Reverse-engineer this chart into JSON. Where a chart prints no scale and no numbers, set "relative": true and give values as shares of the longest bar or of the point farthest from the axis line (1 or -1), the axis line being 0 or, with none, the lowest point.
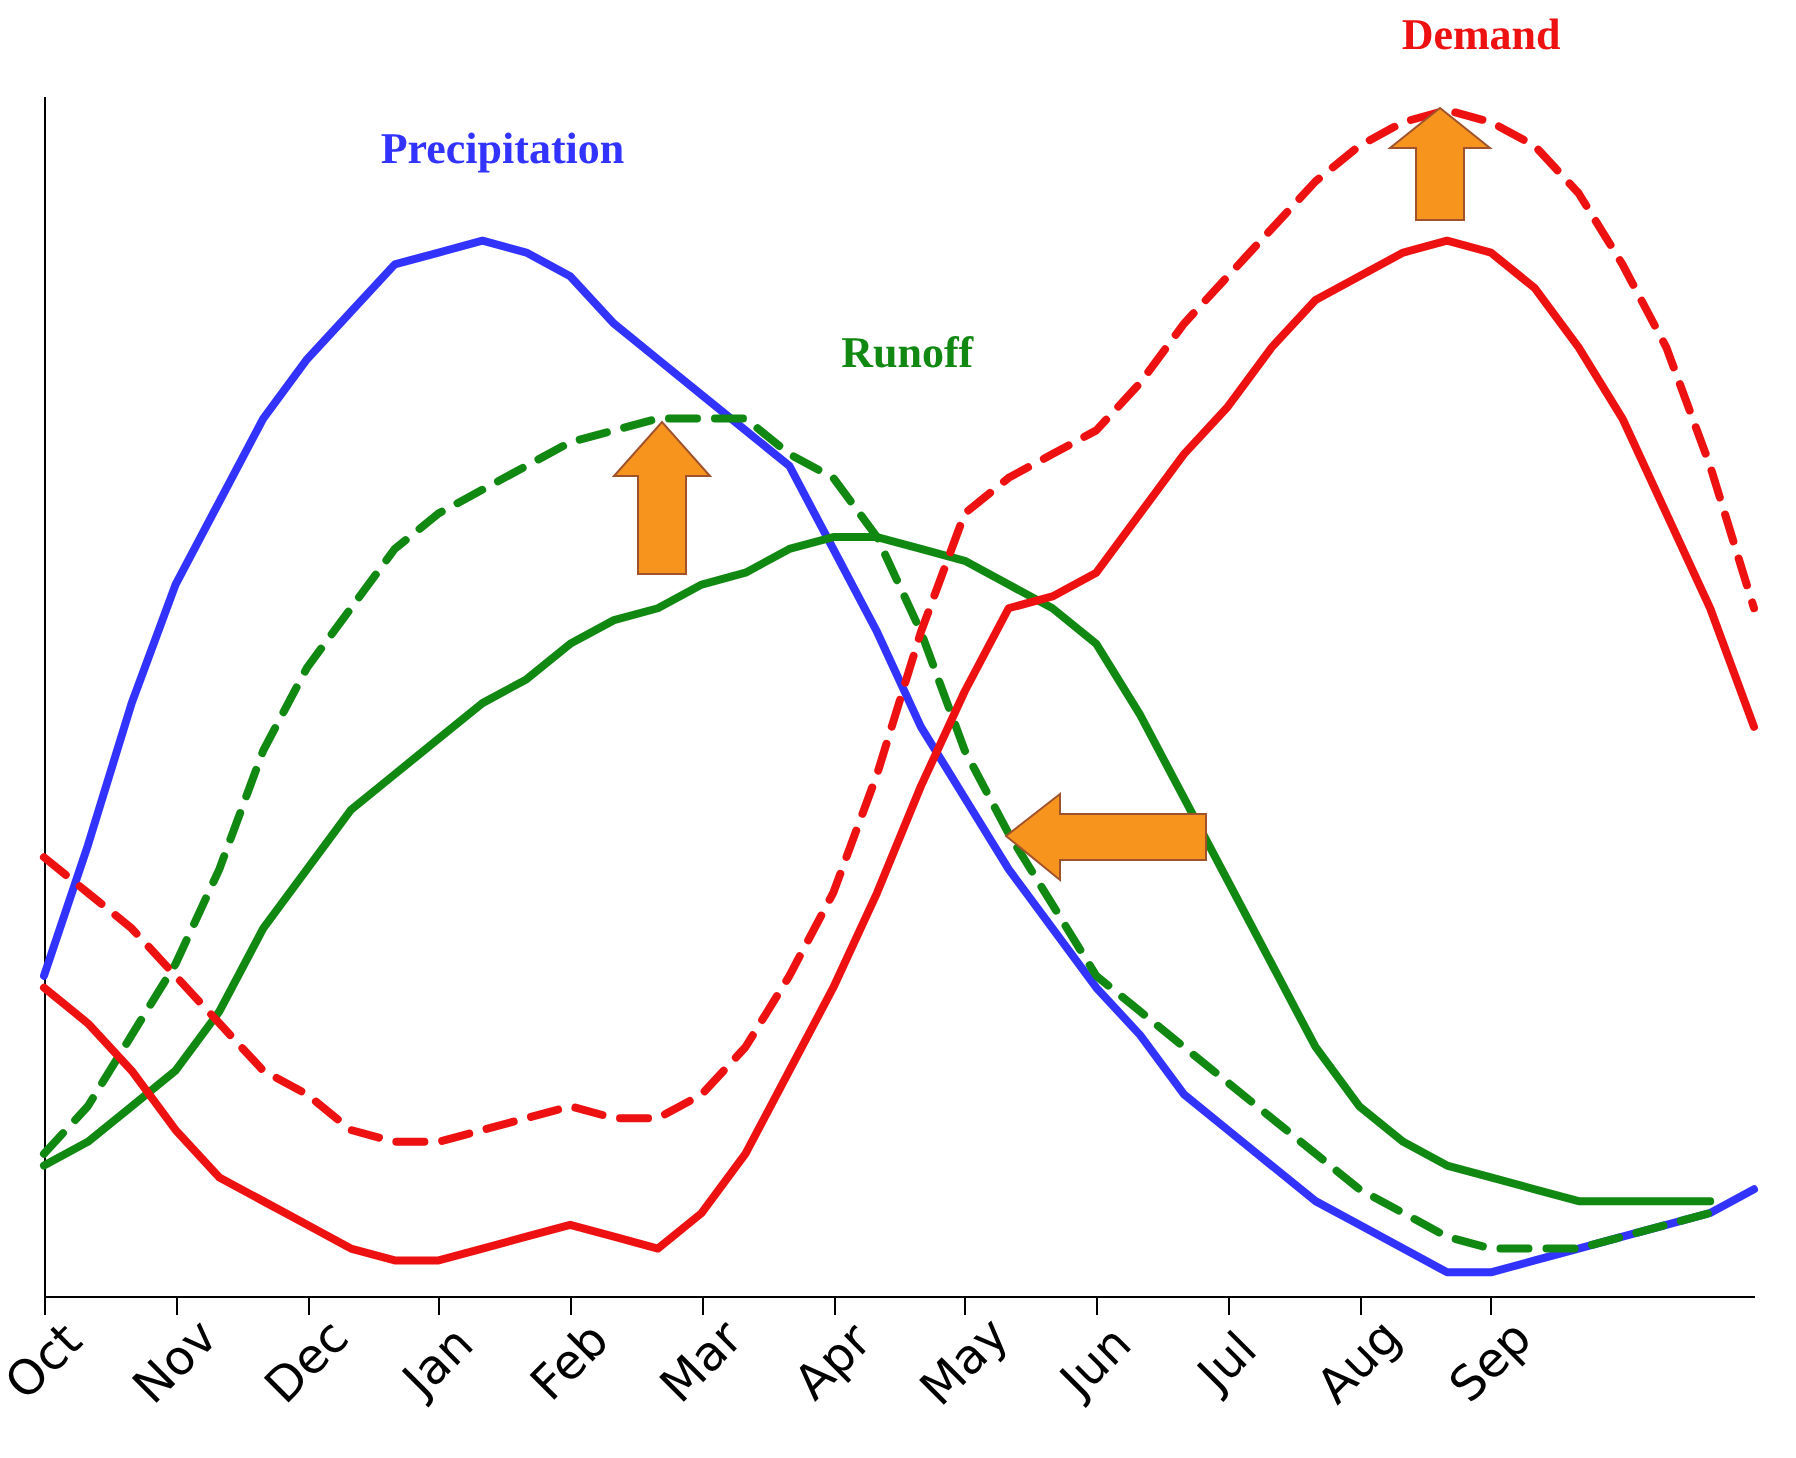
{
  "chart_data": {
    "type": "line",
    "relative": true,
    "grid": false,
    "marker": "none",
    "categories": [
      "Oct",
      null,
      null,
      "Nov",
      null,
      null,
      "Dec",
      null,
      null,
      "Jan",
      null,
      null,
      "Feb",
      null,
      null,
      "Mar",
      null,
      null,
      "Apr",
      null,
      null,
      "May",
      null,
      null,
      "Jun",
      null,
      null,
      "Jul",
      null,
      null,
      "Aug",
      null,
      null,
      "Sep",
      null,
      null,
      null,
      null,
      null,
      null
    ],
    "series": [
      {
        "name": "Precipitation",
        "color": "#3333ff",
        "line_style": "solid",
        "values": [
          0.27,
          0.38,
          0.5,
          0.6,
          0.67,
          0.74,
          0.79,
          0.83,
          0.87,
          0.88,
          0.89,
          0.88,
          0.86,
          0.82,
          0.79,
          0.76,
          0.73,
          0.7,
          0.63,
          0.56,
          0.48,
          0.42,
          0.36,
          0.31,
          0.26,
          0.22,
          0.17,
          0.14,
          0.11,
          0.08,
          0.06,
          0.04,
          0.02,
          0.02,
          0.03,
          0.04,
          0.05,
          0.06,
          0.07,
          0.09
        ]
      },
      {
        "name": "Runoff",
        "color": "#118811",
        "line_style": "solid",
        "values": [
          0.11,
          0.13,
          0.16,
          0.19,
          0.24,
          0.31,
          0.36,
          0.41,
          0.44,
          0.47,
          0.5,
          0.52,
          0.55,
          0.57,
          0.58,
          0.6,
          0.61,
          0.63,
          0.64,
          0.64,
          0.63,
          0.62,
          0.6,
          0.58,
          0.55,
          0.49,
          0.42,
          0.35,
          0.28,
          0.21,
          0.16,
          0.13,
          0.11,
          0.1,
          0.09,
          0.08,
          0.08,
          0.08,
          0.08,
          null
        ]
      },
      {
        "color": "#118811",
        "line_style": "dashed",
        "values": [
          0.12,
          0.16,
          0.22,
          0.28,
          0.36,
          0.46,
          0.53,
          0.58,
          0.63,
          0.66,
          0.68,
          0.7,
          0.72,
          0.73,
          0.74,
          0.74,
          0.74,
          0.71,
          0.69,
          0.64,
          0.56,
          0.46,
          0.39,
          0.33,
          0.27,
          0.24,
          0.21,
          0.18,
          0.15,
          0.12,
          0.09,
          0.07,
          0.05,
          0.04,
          0.04,
          0.04,
          0.05,
          0.06,
          0.07,
          null
        ]
      },
      {
        "name": "Demand",
        "color": "#ee1111",
        "line_style": "solid",
        "values": [
          0.26,
          0.23,
          0.19,
          0.14,
          0.1,
          0.08,
          0.06,
          0.04,
          0.03,
          0.03,
          0.04,
          0.05,
          0.06,
          0.05,
          0.04,
          0.07,
          0.12,
          0.19,
          0.26,
          0.34,
          0.43,
          0.51,
          0.58,
          0.59,
          0.61,
          0.66,
          0.71,
          0.75,
          0.8,
          0.84,
          0.86,
          0.88,
          0.89,
          0.88,
          0.85,
          0.8,
          0.74,
          0.66,
          0.58,
          0.48
        ]
      },
      {
        "color": "#ee1111",
        "line_style": "dashed",
        "values": [
          0.37,
          0.34,
          0.31,
          0.27,
          0.23,
          0.19,
          0.17,
          0.14,
          0.13,
          0.13,
          0.14,
          0.15,
          0.16,
          0.15,
          0.15,
          0.17,
          0.21,
          0.27,
          0.34,
          0.44,
          0.56,
          0.66,
          0.69,
          0.71,
          0.73,
          0.77,
          0.82,
          0.86,
          0.9,
          0.94,
          0.97,
          0.99,
          1.0,
          0.99,
          0.97,
          0.93,
          0.87,
          0.8,
          0.7,
          0.58
        ]
      }
    ]
  }
}
